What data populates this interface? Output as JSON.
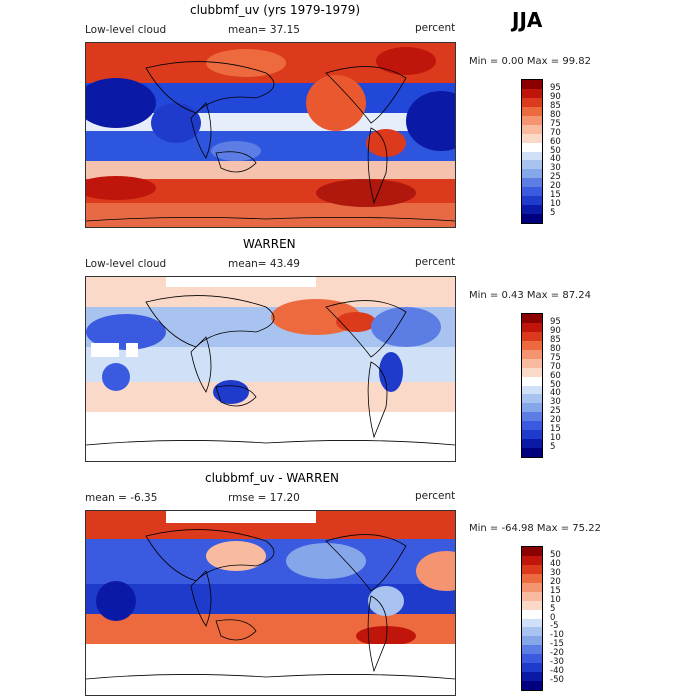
{
  "season": "JJA",
  "panels": [
    {
      "title": "clubbmf_uv (yrs 1979-1979)",
      "left_label": "Low-level cloud",
      "mean_label": "mean=  37.15",
      "units": "percent",
      "minmax": "Min =    0.00 Max =   99.82",
      "colorbar_labels": [
        "95",
        "90",
        "85",
        "80",
        "75",
        "70",
        "60",
        "50",
        "40",
        "30",
        "25",
        "20",
        "15",
        "10",
        "5"
      ],
      "colorbar_colors": [
        "#8b0000",
        "#c0150a",
        "#dc3a1c",
        "#ec6a3e",
        "#f59470",
        "#f9bba0",
        "#fbd9c8",
        "#ffffff",
        "#cfe0f7",
        "#a9c3f0",
        "#86a6ea",
        "#5c7ee4",
        "#3a5be0",
        "#1f3bcc",
        "#0a1aa6",
        "#00007f"
      ]
    },
    {
      "title": "WARREN",
      "left_label": "Low-level cloud",
      "mean_label": "mean=  43.49",
      "units": "percent",
      "minmax": "Min =    0.43 Max =   87.24",
      "colorbar_labels": [
        "95",
        "90",
        "85",
        "80",
        "75",
        "70",
        "60",
        "50",
        "40",
        "30",
        "25",
        "20",
        "15",
        "10",
        "5"
      ],
      "colorbar_colors": [
        "#8b0000",
        "#c0150a",
        "#dc3a1c",
        "#ec6a3e",
        "#f59470",
        "#f9bba0",
        "#fbd9c8",
        "#ffffff",
        "#cfe0f7",
        "#a9c3f0",
        "#86a6ea",
        "#5c7ee4",
        "#3a5be0",
        "#1f3bcc",
        "#0a1aa6",
        "#00007f"
      ]
    },
    {
      "title": "clubbmf_uv - WARREN",
      "left_label": "mean =   -6.35",
      "mean_label": "rmse =   17.20",
      "units": "percent",
      "minmax": "Min = -64.98 Max =   75.22",
      "colorbar_labels": [
        "50",
        "40",
        "30",
        "20",
        "15",
        "10",
        "5",
        "0",
        "-5",
        "-10",
        "-15",
        "-20",
        "-30",
        "-40",
        "-50"
      ],
      "colorbar_colors": [
        "#8b0000",
        "#c0150a",
        "#dc3a1c",
        "#ec6a3e",
        "#f59470",
        "#f9bba0",
        "#fbd9c8",
        "#ffffff",
        "#cfe0f7",
        "#a9c3f0",
        "#86a6ea",
        "#5c7ee4",
        "#3a5be0",
        "#1f3bcc",
        "#0a1aa6",
        "#00007f"
      ]
    }
  ],
  "chart_data": {
    "type": "heatmap",
    "variable": "Low-level cloud",
    "units": "percent",
    "season": "JJA",
    "maps": [
      {
        "title": "clubbmf_uv (yrs 1979-1979)",
        "mean": 37.15,
        "min": 0.0,
        "max": 99.82,
        "contour_levels": [
          5,
          10,
          15,
          20,
          25,
          30,
          40,
          50,
          60,
          70,
          75,
          80,
          85,
          90,
          95
        ]
      },
      {
        "title": "WARREN",
        "mean": 43.49,
        "min": 0.43,
        "max": 87.24,
        "contour_levels": [
          5,
          10,
          15,
          20,
          25,
          30,
          40,
          50,
          60,
          70,
          75,
          80,
          85,
          90,
          95
        ]
      },
      {
        "title": "clubbmf_uv - WARREN",
        "mean": -6.35,
        "rmse": 17.2,
        "min": -64.98,
        "max": 75.22,
        "contour_levels": [
          -50,
          -40,
          -30,
          -20,
          -15,
          -10,
          -5,
          0,
          5,
          10,
          15,
          20,
          30,
          40,
          50
        ]
      }
    ]
  }
}
